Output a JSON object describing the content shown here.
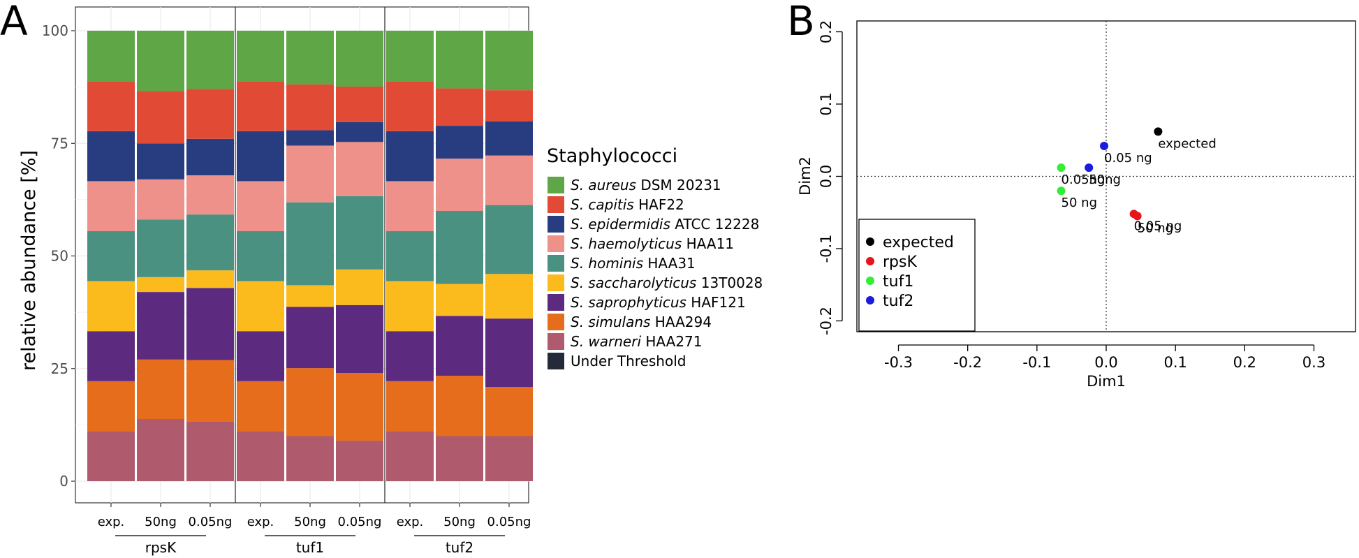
{
  "chart_data": [
    {
      "type": "bar",
      "panel_label": "A",
      "stacked": true,
      "ylabel": "relative abundance [%]",
      "xlabel": "",
      "ylim": [
        0,
        100
      ],
      "yticks": [
        "0",
        "25",
        "50",
        "75",
        "100"
      ],
      "grid": true,
      "categories": [
        "exp.",
        "50ng",
        "0.05ng",
        "exp.",
        "50ng",
        "0.05ng",
        "exp.",
        "50ng",
        "0.05ng"
      ],
      "groups": [
        {
          "name": "rpsK",
          "members": [
            0,
            1,
            2
          ]
        },
        {
          "name": "tuf1",
          "members": [
            3,
            4,
            5
          ]
        },
        {
          "name": "tuf2",
          "members": [
            6,
            7,
            8
          ]
        }
      ],
      "legend": {
        "title": "Staphylococci",
        "position": "right",
        "entries": [
          {
            "italic": "S. aureus",
            "rest": " DSM 20231",
            "color": "#5ea646"
          },
          {
            "italic": "S. capitis",
            "rest": " HAF22",
            "color": "#e14b36"
          },
          {
            "italic": "S. epidermidis",
            "rest": " ATCC 12228",
            "color": "#283d80"
          },
          {
            "italic": "S. haemolyticus",
            "rest": " HAA11",
            "color": "#ee918b"
          },
          {
            "italic": "S. hominis",
            "rest": " HAA31",
            "color": "#4a9181"
          },
          {
            "italic": "S. saccharolyticus",
            "rest": " 13T0028",
            "color": "#fcbb1d"
          },
          {
            "italic": "S. saprophyticus",
            "rest": " HAF121",
            "color": "#5c2b7f"
          },
          {
            "italic": "S. simulans",
            "rest": " HAA294",
            "color": "#e66d1c"
          },
          {
            "italic": "S. warneri",
            "rest": " HAA271",
            "color": "#b05a6d"
          },
          {
            "italic": "",
            "rest": "Under Threshold",
            "color": "#252a3a"
          }
        ]
      },
      "series": [
        {
          "name": "S. warneri HAA271",
          "values": [
            11.1,
            13.8,
            13.3,
            11.1,
            10.0,
            9.0,
            11.1,
            10.0,
            10.0
          ]
        },
        {
          "name": "S. simulans HAA294",
          "values": [
            11.1,
            13.2,
            13.6,
            11.1,
            15.1,
            15.0,
            11.1,
            13.4,
            10.9
          ]
        },
        {
          "name": "S. saprophyticus HAF121",
          "values": [
            11.1,
            15.0,
            16.0,
            11.1,
            13.6,
            15.1,
            11.1,
            13.3,
            15.2
          ]
        },
        {
          "name": "S. saccharolyticus 13T0028",
          "values": [
            11.1,
            3.3,
            3.9,
            11.1,
            4.8,
            7.9,
            11.1,
            7.1,
            9.9
          ]
        },
        {
          "name": "S. hominis HAA31",
          "values": [
            11.1,
            12.8,
            12.4,
            11.1,
            18.4,
            16.3,
            11.1,
            16.2,
            15.3
          ]
        },
        {
          "name": "S. haemolyticus HAA11",
          "values": [
            11.1,
            8.9,
            8.7,
            11.1,
            12.6,
            12.0,
            11.1,
            11.6,
            11.0
          ]
        },
        {
          "name": "S. epidermidis ATCC 12228",
          "values": [
            11.1,
            8.0,
            8.1,
            11.1,
            3.4,
            4.4,
            11.1,
            7.3,
            7.6
          ]
        },
        {
          "name": "S. capitis HAF22",
          "values": [
            11.1,
            11.6,
            11.1,
            11.1,
            10.2,
            7.9,
            11.1,
            8.3,
            6.9
          ]
        },
        {
          "name": "S. aureus DSM 20231",
          "values": [
            11.2,
            13.4,
            12.9,
            11.2,
            11.9,
            12.4,
            11.2,
            12.8,
            13.2
          ]
        }
      ]
    },
    {
      "type": "scatter",
      "panel_label": "B",
      "xlabel": "Dim1",
      "ylabel": "Dim2",
      "xlim": [
        -0.36,
        0.36
      ],
      "ylim": [
        -0.215,
        0.215
      ],
      "xticks": [
        -0.3,
        -0.2,
        -0.1,
        0.0,
        0.1,
        0.2,
        0.3
      ],
      "xtick_labels": [
        "-0.3",
        "-0.2",
        "-0.1",
        "0.0",
        "0.1",
        "0.2",
        "0.3"
      ],
      "yticks": [
        -0.2,
        -0.1,
        0.0,
        0.1,
        0.2
      ],
      "ytick_labels": [
        "-0.2",
        "-0.1",
        "0.0",
        "0.1",
        "0.2"
      ],
      "reference_lines": {
        "x": 0,
        "y": 0,
        "style": "dotted"
      },
      "legend": {
        "position": "bottom-left",
        "entries": [
          {
            "label": "expected",
            "color": "#000000"
          },
          {
            "label": "rpsK",
            "color": "#e8141b"
          },
          {
            "label": "tuf1",
            "color": "#33ee33"
          },
          {
            "label": "tuf2",
            "color": "#1b1bdd"
          }
        ]
      },
      "points": [
        {
          "series": "expected",
          "x": 0.075,
          "y": 0.062,
          "label": "expected"
        },
        {
          "series": "tuf2",
          "x": -0.003,
          "y": 0.042,
          "label": "0.05 ng"
        },
        {
          "series": "tuf2",
          "x": -0.025,
          "y": 0.012,
          "label": "50ng"
        },
        {
          "series": "tuf1",
          "x": -0.065,
          "y": 0.012,
          "label": "0.05ng"
        },
        {
          "series": "tuf1",
          "x": -0.065,
          "y": -0.02,
          "label": "50 ng"
        },
        {
          "series": "rpsK",
          "x": 0.04,
          "y": -0.052,
          "label": "0.05 ng"
        },
        {
          "series": "rpsK",
          "x": 0.045,
          "y": -0.055,
          "label": "50 ng"
        }
      ]
    }
  ]
}
